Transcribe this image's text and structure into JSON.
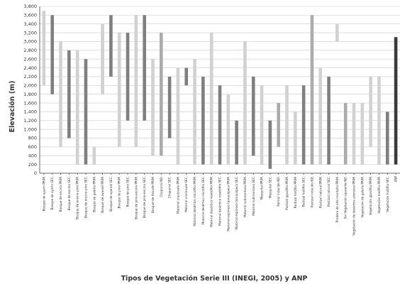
{
  "colors": {
    "PRIM": "#d1d1d1",
    "SEC": "#7f7f7f",
    "ND": "#ababab",
    "ANP": "#3a3a3a"
  },
  "chart_data": {
    "type": "bar",
    "subtype": "floating-range",
    "xlabel": "Tipos de Vegetación Serie III (INEGI, 2005) y ANP",
    "ylabel": "Elevación (m)",
    "ylim": [
      0,
      3800
    ],
    "yticks": [
      0,
      200,
      400,
      600,
      800,
      1000,
      1200,
      1400,
      1600,
      1800,
      2000,
      2200,
      2400,
      2600,
      2800,
      3000,
      3200,
      3400,
      3600,
      3800
    ],
    "ytick_labels": [
      "0",
      "200",
      "400",
      "600",
      "800",
      "1,000",
      "1,200",
      "1,400",
      "1,600",
      "1,800",
      "2,000",
      "2,200",
      "2,400",
      "2,600",
      "2,800",
      "3,000",
      "3,200",
      "3,400",
      "3,600",
      "3,800"
    ],
    "grid": true,
    "categories": [
      "Bosque de ayarín PRIM.",
      "Bosque de ayarín SEC.",
      "Bosque de encino PRIM.",
      "Bosque de encino SEC.",
      "Bosque de encino-pino PRIM.",
      "Bosque de encino-pino SEC.",
      "Bosque de galería PRIM.",
      "Bosque de oyamel PRIM.",
      "Bosque de oyamel SEC.",
      "Bosque de pino PRIM.",
      "Bosque de pino SEC.",
      "Bosque de pino-encino PRIM.",
      "Bosque de pino-encino SEC.",
      "Bosque de táscate PRIM.",
      "Chaparral ND.",
      "Chaparral SEC.",
      "Matorral crasicaule PRIM.",
      "Matorral crasicaule SEC.",
      "Matorral desértico micrófilo PRIM.",
      "Matorral desértico micrófilo SEC.",
      "Matorral desértico rosetófilo PRIM.",
      "Matorral desértico rosetófilo SEC.",
      "Matorral espinoso tamaulipeco PRIM.",
      "Matorral espinoso tamaulipeco SEC.",
      "Matorral submontano PRIM.",
      "Matorral submontano SEC.",
      "Mezquital PRIM.",
      "Mezquital SEC.",
      "Palmar inducido ND.",
      "Pastizal gipsófilo PRIM.",
      "Pastizal halófilo PRIM.",
      "Pastizal halófilo SEC.",
      "Pastizal inducido ND.",
      "Pastizal natural PRIM.",
      "Pastizal natural SEC.",
      "Pradera de alta montaña PRIM.",
      "Sin Vegetación aparente ND.",
      "Vegetación de desiertos arenosos PRIM.",
      "Vegetación de galería PRIM.",
      "Vegetación gipsófila PRIM.",
      "Vegetación halófila PRIM.",
      "Vegetación halófila SEC.",
      "ANP"
    ],
    "series": [
      {
        "name": "PRIM",
        "type_of_values": "range [min, max] m",
        "values": [
          [
            2000,
            3700
          ],
          null,
          [
            600,
            3000
          ],
          null,
          [
            200,
            2800
          ],
          null,
          [
            200,
            600
          ],
          [
            1800,
            3400
          ],
          null,
          [
            600,
            3200
          ],
          null,
          [
            600,
            3600
          ],
          null,
          [
            400,
            2600
          ],
          null,
          null,
          [
            200,
            2400
          ],
          null,
          [
            200,
            2600
          ],
          null,
          [
            200,
            3200
          ],
          null,
          [
            200,
            1800
          ],
          null,
          [
            200,
            3000
          ],
          null,
          [
            200,
            2000
          ],
          null,
          null,
          [
            200,
            2000
          ],
          [
            200,
            1400
          ],
          null,
          null,
          [
            200,
            2400
          ],
          null,
          [
            3000,
            3400
          ],
          null,
          [
            200,
            1600
          ],
          [
            200,
            1600
          ],
          [
            600,
            2200
          ],
          [
            200,
            2200
          ],
          null,
          null
        ]
      },
      {
        "name": "SEC",
        "type_of_values": "range [min, max] m",
        "values": [
          null,
          [
            1800,
            3600
          ],
          null,
          [
            800,
            2800
          ],
          null,
          [
            200,
            2600
          ],
          null,
          null,
          [
            2200,
            3600
          ],
          null,
          [
            1200,
            3200
          ],
          null,
          [
            1200,
            3600
          ],
          null,
          null,
          [
            800,
            2200
          ],
          null,
          [
            2000,
            2400
          ],
          null,
          [
            200,
            2200
          ],
          null,
          [
            200,
            2000
          ],
          null,
          [
            200,
            1200
          ],
          null,
          [
            400,
            2200
          ],
          null,
          [
            100,
            1200
          ],
          null,
          null,
          null,
          [
            200,
            2000
          ],
          null,
          null,
          [
            200,
            2200
          ],
          null,
          null,
          null,
          null,
          null,
          null,
          [
            200,
            1400
          ],
          null
        ]
      },
      {
        "name": "ND",
        "type_of_values": "range [min, max] m",
        "values": [
          null,
          null,
          null,
          null,
          null,
          null,
          null,
          null,
          null,
          null,
          null,
          null,
          null,
          null,
          [
            400,
            3200
          ],
          null,
          null,
          null,
          null,
          null,
          null,
          null,
          null,
          null,
          null,
          null,
          null,
          null,
          [
            600,
            1600
          ],
          null,
          null,
          null,
          [
            200,
            3600
          ],
          null,
          null,
          null,
          [
            200,
            1600
          ],
          null,
          null,
          null,
          null,
          null,
          null
        ]
      },
      {
        "name": "ANP",
        "type_of_values": "range [min, max] m",
        "values": [
          null,
          null,
          null,
          null,
          null,
          null,
          null,
          null,
          null,
          null,
          null,
          null,
          null,
          null,
          null,
          null,
          null,
          null,
          null,
          null,
          null,
          null,
          null,
          null,
          null,
          null,
          null,
          null,
          null,
          null,
          null,
          null,
          null,
          null,
          null,
          null,
          null,
          null,
          null,
          null,
          null,
          null,
          [
            200,
            3100
          ]
        ]
      }
    ]
  }
}
